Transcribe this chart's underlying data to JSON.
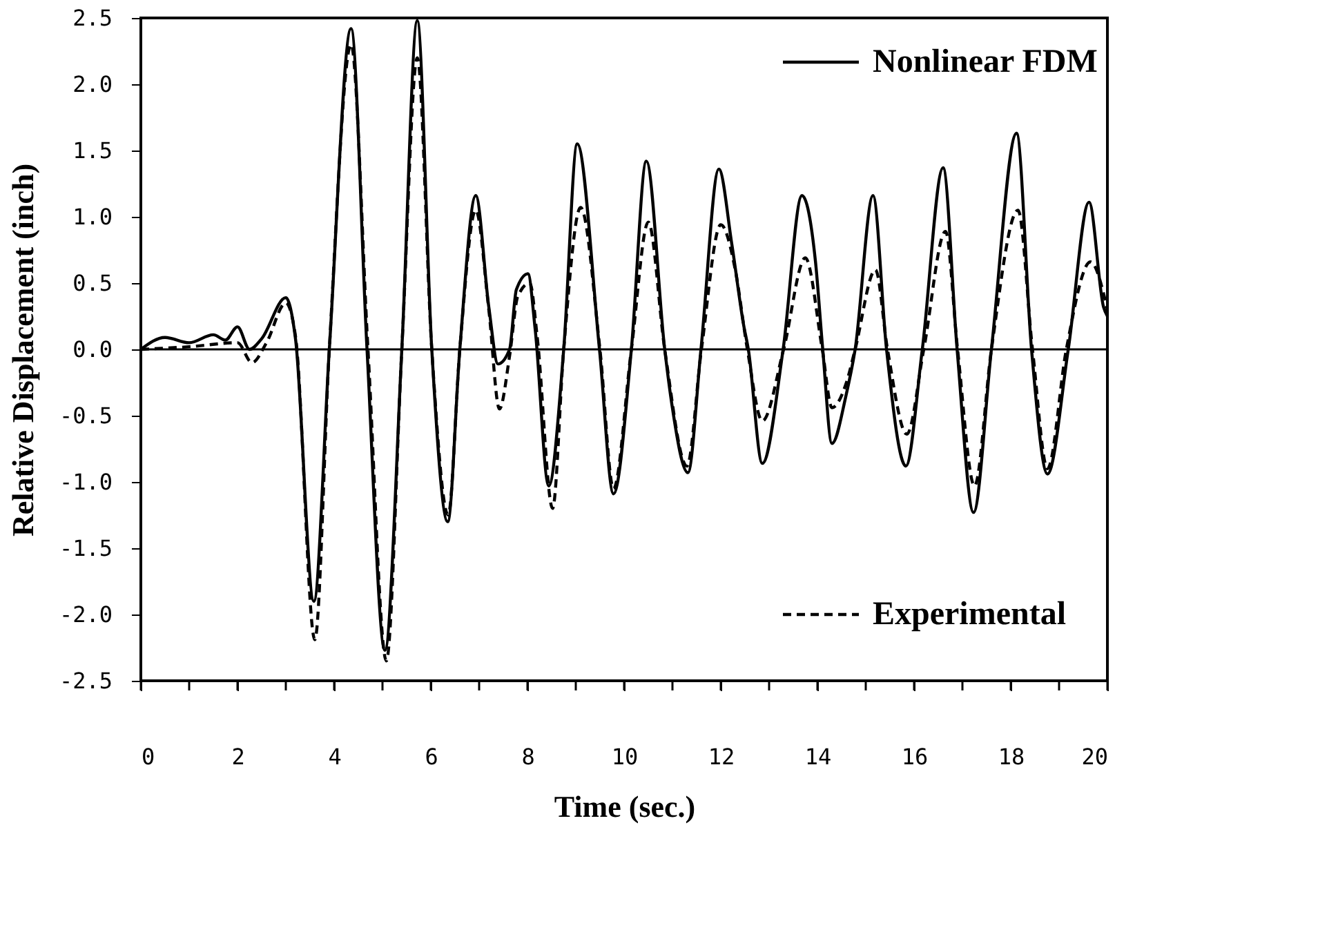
{
  "chart_data": {
    "type": "line",
    "xlabel": "Time (sec.)",
    "ylabel": "Relative Displacement (inch)",
    "xlim": [
      0,
      20
    ],
    "ylim": [
      -2.5,
      2.5
    ],
    "xticks": [
      0,
      {
        "value": 1,
        "label": null
      },
      2,
      {
        "value": 3,
        "label": null
      },
      4,
      {
        "value": 5,
        "label": null
      },
      6,
      {
        "value": 7,
        "label": null
      },
      8,
      {
        "value": 9,
        "label": null
      },
      10,
      {
        "value": 11,
        "label": null
      },
      12,
      {
        "value": 13,
        "label": null
      },
      14,
      {
        "value": 15,
        "label": null
      },
      16,
      {
        "value": 17,
        "label": null
      },
      18,
      {
        "value": 19,
        "label": null
      },
      20
    ],
    "yticks": [
      {
        "value": -2.5,
        "label": "-2.5"
      },
      {
        "value": -2.0,
        "label": "-2.0"
      },
      {
        "value": -1.5,
        "label": "-1.5"
      },
      {
        "value": -1.0,
        "label": "-1.0"
      },
      {
        "value": -0.5,
        "label": "-0.5"
      },
      {
        "value": 0,
        "label": "0.0"
      },
      {
        "value": 0.5,
        "label": "0.5"
      },
      {
        "value": 1.0,
        "label": "1.0"
      },
      {
        "value": 1.5,
        "label": "1.5"
      },
      {
        "value": 2.0,
        "label": "2.0"
      },
      {
        "value": 2.5,
        "label": "2.5"
      }
    ],
    "grid": false,
    "legend": "right",
    "marker": "none",
    "ref_lines": [
      {
        "axis": "y",
        "value": 0,
        "color": "#000000",
        "line_style": "solid"
      }
    ],
    "series": [
      {
        "name": "Nonlinear FDM",
        "color": "#000000",
        "line_style": "solid",
        "x": [
          0,
          0.5,
          1.0,
          1.5,
          1.75,
          2.0,
          2.25,
          2.5,
          3.0,
          3.2,
          3.58,
          3.9,
          4.35,
          4.68,
          5.05,
          5.4,
          5.72,
          6.02,
          6.35,
          6.6,
          6.93,
          7.2,
          7.39,
          7.63,
          7.77,
          8.01,
          8.16,
          8.44,
          8.75,
          9.03,
          9.49,
          9.78,
          10.15,
          10.46,
          10.84,
          10.99,
          11.32,
          11.59,
          11.96,
          12.23,
          12.47,
          12.57,
          12.86,
          13.29,
          13.68,
          13.96,
          14.11,
          14.3,
          14.59,
          14.78,
          15.15,
          15.43,
          15.83,
          16.17,
          16.6,
          16.89,
          17.23,
          17.6,
          18.12,
          18.43,
          18.76,
          19.19,
          19.62,
          19.92,
          20
        ],
        "values": [
          0,
          0.09,
          0.05,
          0.11,
          0.07,
          0.17,
          0,
          0.08,
          0.39,
          0.08,
          -1.9,
          0,
          2.42,
          0,
          -2.27,
          0,
          2.48,
          0,
          -1.3,
          0,
          1.16,
          0.32,
          -0.11,
          0,
          0.45,
          0.57,
          0.15,
          -1.03,
          0,
          1.55,
          0,
          -1.09,
          0,
          1.42,
          0,
          -0.42,
          -0.93,
          0,
          1.36,
          0.79,
          0.19,
          0,
          -0.86,
          0,
          1.16,
          0.66,
          0,
          -0.71,
          -0.35,
          0,
          1.16,
          0,
          -0.88,
          0,
          1.37,
          0,
          -1.23,
          0,
          1.63,
          0,
          -0.94,
          0,
          1.11,
          0.32,
          0.25
        ]
      },
      {
        "name": "Experimental",
        "color": "#000000",
        "line_style": "dashed",
        "x": [
          0,
          1.0,
          2.0,
          2.3,
          2.6,
          3.0,
          3.2,
          3.6,
          3.9,
          4.35,
          4.7,
          5.08,
          5.4,
          5.72,
          6.02,
          6.36,
          6.6,
          6.93,
          7.2,
          7.42,
          7.63,
          7.8,
          8.05,
          8.2,
          8.52,
          8.75,
          9.1,
          9.5,
          9.78,
          10.15,
          10.5,
          10.84,
          11.3,
          11.6,
          12.0,
          12.3,
          12.55,
          12.86,
          13.3,
          13.75,
          14.1,
          14.3,
          14.6,
          14.78,
          15.2,
          15.45,
          15.85,
          16.2,
          16.65,
          16.9,
          17.25,
          17.6,
          18.15,
          18.45,
          18.76,
          19.15,
          19.65,
          20
        ],
        "values": [
          0,
          0.02,
          0.05,
          -0.1,
          0.05,
          0.35,
          0.1,
          -2.19,
          0,
          2.3,
          0,
          -2.35,
          0,
          2.2,
          0,
          -1.25,
          0,
          1.05,
          0.3,
          -0.45,
          -0.05,
          0.4,
          0.5,
          0.1,
          -1.2,
          0,
          1.07,
          0,
          -1.05,
          0,
          0.96,
          0,
          -0.88,
          0,
          0.94,
          0.6,
          0,
          -0.54,
          0,
          0.69,
          0,
          -0.44,
          -0.25,
          0,
          0.6,
          0,
          -0.64,
          0,
          0.89,
          0,
          -1.03,
          0,
          1.05,
          0,
          -0.9,
          0,
          0.66,
          0.3
        ]
      }
    ]
  }
}
